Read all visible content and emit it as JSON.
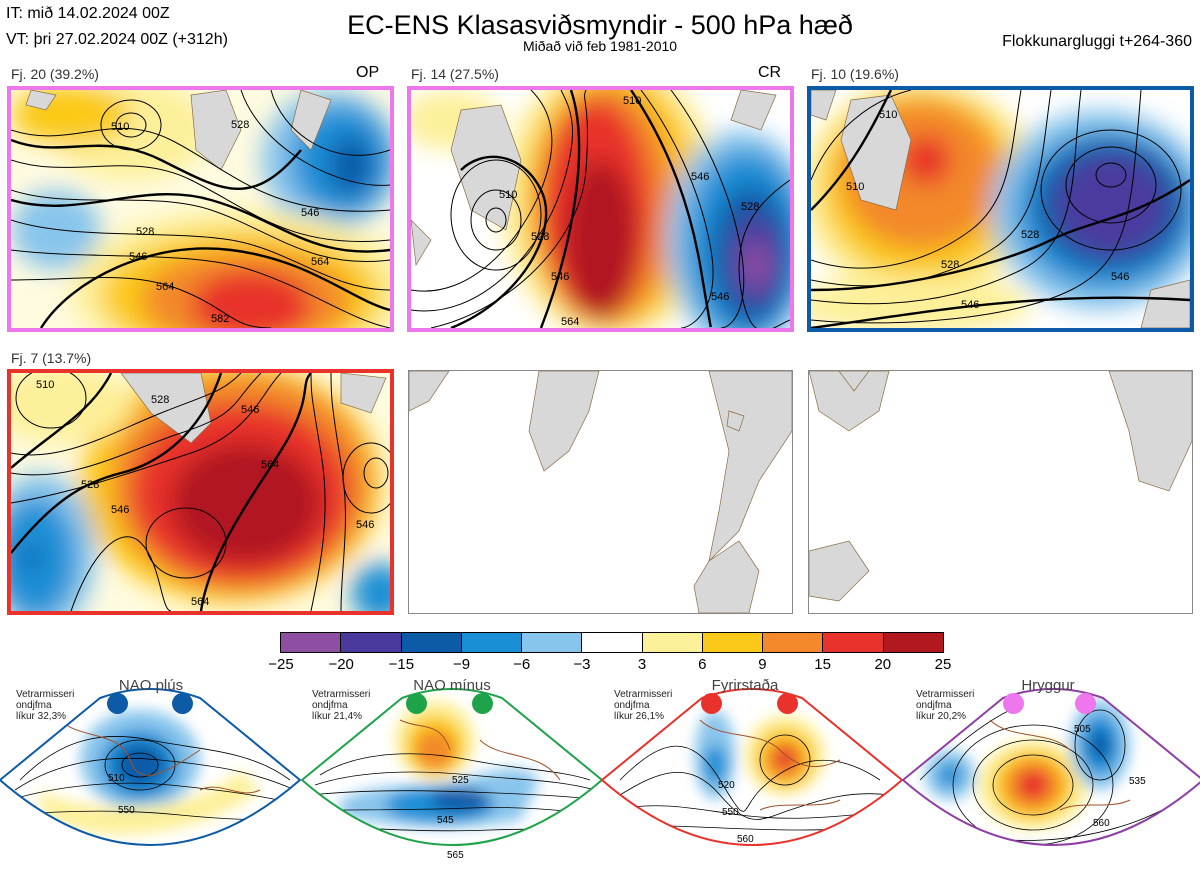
{
  "header": {
    "initial_time": "IT: mið 14.02.2024 00Z",
    "valid_time": "VT: þri 27.02.2024 00Z  (+312h)",
    "title": "EC-ENS Klasasviðsmyndir - 500 hPa hæð",
    "subtitle": "Miðað við feb 1981-2010",
    "window": "Flokkunargluggi t+264-360"
  },
  "clusters": [
    {
      "label": "Fj. 20 (39.2%)",
      "tag": "OP",
      "border_color": "#ee77ee",
      "contours": [
        "510",
        "528",
        "546",
        "564",
        "582"
      ]
    },
    {
      "label": "Fj. 14 (27.5%)",
      "tag": "CR",
      "border_color": "#ee77ee",
      "contours": [
        "510",
        "528",
        "546",
        "564"
      ]
    },
    {
      "label": "Fj. 10 (19.6%)",
      "tag": "",
      "border_color": "#0d5aa7",
      "contours": [
        "510",
        "528",
        "546"
      ]
    },
    {
      "label": "Fj. 7 (13.7%)",
      "tag": "",
      "border_color": "#e8322b",
      "contours": [
        "510",
        "528",
        "546",
        "564"
      ]
    }
  ],
  "colorbar": {
    "ticks": [
      "−25",
      "−20",
      "−15",
      "−9",
      "−6",
      "−3",
      "3",
      "6",
      "9",
      "15",
      "20",
      "25"
    ],
    "colors": [
      "#8e4fa3",
      "#4b3a9e",
      "#0d5aa7",
      "#1a8fd6",
      "#88c5ec",
      "#ffffff",
      "#fdf09a",
      "#fbc919",
      "#f3892c",
      "#e8322b",
      "#b11820"
    ]
  },
  "regimes": [
    {
      "name": "NAO plús",
      "season": "Vetrarmisseri",
      "mean": "ondjfma",
      "prob": "líkur 32,3%",
      "color": "#0d5aa7",
      "contours": [
        "510",
        "550"
      ]
    },
    {
      "name": "NAO mínus",
      "season": "Vetrarmisseri",
      "mean": "ondjfma",
      "prob": "líkur 21,4%",
      "color": "#1fa34a",
      "contours": [
        "525",
        "545",
        "565"
      ]
    },
    {
      "name": "Fyrirstaða",
      "season": "Vetrarmisseri",
      "mean": "ondjfma",
      "prob": "líkur 26,1%",
      "color": "#e8322b",
      "contours": [
        "520",
        "550",
        "560"
      ]
    },
    {
      "name": "Hryggur",
      "season": "Vetrarmisseri",
      "mean": "ondjfma",
      "prob": "líkur 20,2%",
      "color": "#8e3fa3",
      "contours": [
        "505",
        "535",
        "560"
      ]
    }
  ]
}
